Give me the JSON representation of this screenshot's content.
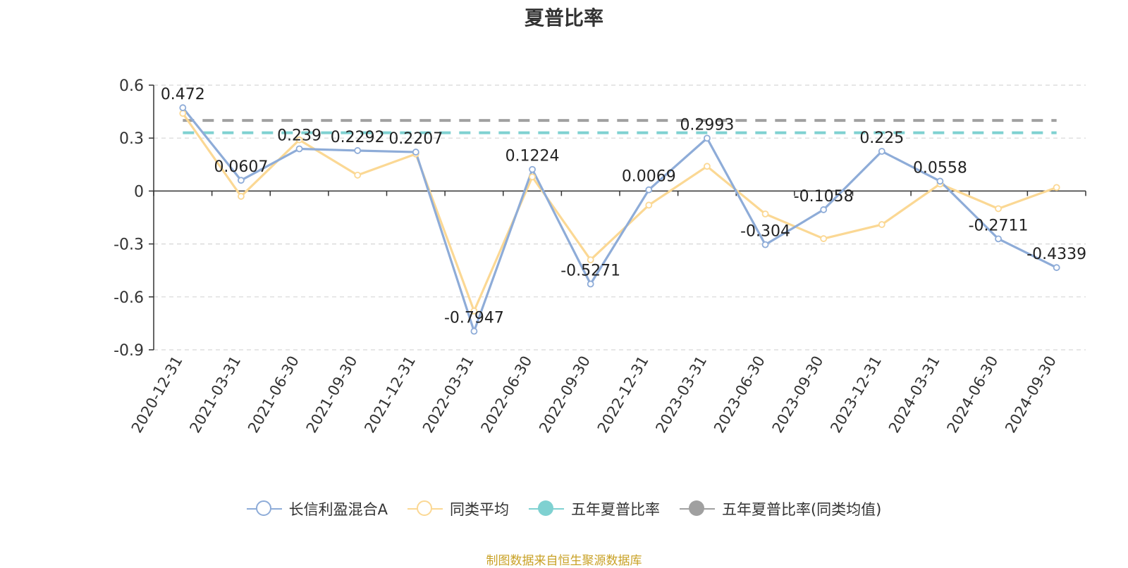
{
  "chart_data": {
    "type": "line",
    "title": "夏普比率",
    "categories": [
      "2020-12-31",
      "2021-03-31",
      "2021-06-30",
      "2021-09-30",
      "2021-12-31",
      "2022-03-31",
      "2022-06-30",
      "2022-09-30",
      "2022-12-31",
      "2023-03-31",
      "2023-06-30",
      "2023-09-30",
      "2023-12-31",
      "2024-03-31",
      "2024-06-30",
      "2024-09-30"
    ],
    "y_ticks": [
      "0.6",
      "0.3",
      "0",
      "-0.3",
      "-0.6",
      "-0.9"
    ],
    "ylim": [
      -0.9,
      0.6
    ],
    "grid": true,
    "legend_position": "bottom",
    "series": [
      {
        "name": "长信利盈混合A",
        "color": "#8eacd8",
        "values": [
          0.472,
          0.0607,
          0.239,
          0.2292,
          0.2207,
          -0.7947,
          0.1224,
          -0.5271,
          0.0069,
          0.2993,
          -0.304,
          -0.1058,
          0.225,
          0.0558,
          -0.2711,
          -0.4339
        ],
        "labels": [
          "0.472",
          "0.0607",
          "0.239",
          "0.2292",
          "0.2207",
          "-0.7947",
          "0.1224",
          "-0.5271",
          "0.0069",
          "0.2993",
          "-0.304",
          "-0.1058",
          "0.225",
          "0.0558",
          "-0.2711",
          "-0.4339"
        ]
      },
      {
        "name": "同类平均",
        "color": "#fbd894",
        "values": [
          0.44,
          -0.03,
          0.29,
          0.09,
          0.21,
          -0.68,
          0.08,
          -0.39,
          -0.08,
          0.14,
          -0.13,
          -0.27,
          -0.19,
          0.04,
          -0.1,
          0.02
        ]
      },
      {
        "name": "五年夏普比率",
        "color": "#7fd1d1",
        "value": 0.33,
        "style": "dashed"
      },
      {
        "name": "五年夏普比率(同类均值)",
        "color": "#a0a0a0",
        "value": 0.4,
        "style": "dashed"
      }
    ]
  },
  "source_note": "制图数据来自恒生聚源数据库"
}
